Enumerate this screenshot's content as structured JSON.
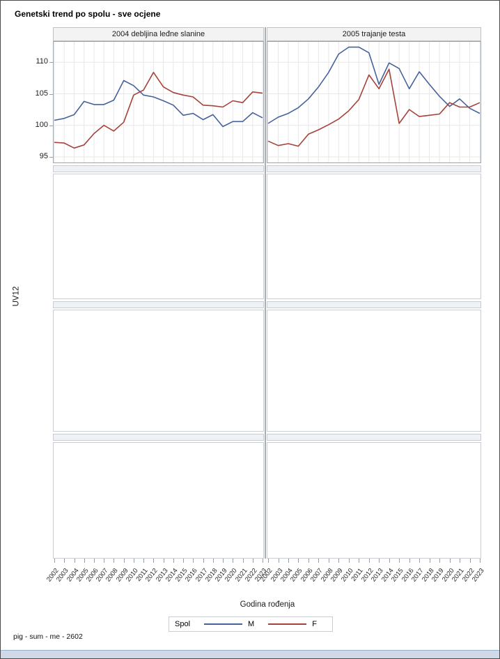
{
  "page": {
    "title": "Genetski trend po spolu - sve ocjene",
    "footer": "pig - sum - me - 2602"
  },
  "chart_data": {
    "type": "line",
    "title": "Genetski trend po spolu - sve ocjene",
    "ylabel": "UV12",
    "xlabel": "Godina rođenja",
    "ylim": [
      94.0,
      113.35
    ],
    "yticks": [
      95,
      100,
      105,
      110
    ],
    "grid": true,
    "x": [
      2002,
      2003,
      2004,
      2005,
      2006,
      2007,
      2008,
      2009,
      2010,
      2011,
      2012,
      2013,
      2014,
      2015,
      2016,
      2017,
      2018,
      2019,
      2020,
      2021,
      2022,
      2023
    ],
    "legend": {
      "title": "Spol",
      "position": "bottom",
      "entries": [
        {
          "name": "M",
          "color": "#46629B"
        },
        {
          "name": "F",
          "color": "#A5433A"
        }
      ]
    },
    "panels": [
      {
        "header": "2004 debljina leđne slanine",
        "series": [
          {
            "name": "M",
            "color": "#46629B",
            "values": [
              100.8,
              101.1,
              101.7,
              103.8,
              103.3,
              103.3,
              104.0,
              107.1,
              106.3,
              104.8,
              104.5,
              103.9,
              103.2,
              101.6,
              101.9,
              100.9,
              101.7,
              99.8,
              100.6,
              100.6,
              102.0,
              101.2
            ]
          },
          {
            "name": "F",
            "color": "#A5433A",
            "values": [
              97.3,
              97.2,
              96.4,
              96.9,
              98.7,
              100.0,
              99.1,
              100.5,
              104.8,
              105.6,
              108.4,
              106.1,
              105.2,
              104.8,
              104.5,
              103.2,
              103.1,
              102.9,
              103.9,
              103.6,
              105.3,
              105.1
            ]
          }
        ]
      },
      {
        "header": "2005 trajanje testa",
        "series": [
          {
            "name": "M",
            "color": "#46629B",
            "values": [
              100.3,
              101.3,
              101.9,
              102.8,
              104.2,
              106.1,
              108.4,
              111.3,
              112.4,
              112.4,
              111.5,
              106.5,
              109.9,
              109.0,
              105.8,
              108.5,
              106.5,
              104.6,
              103.0,
              104.2,
              102.7,
              101.9
            ]
          },
          {
            "name": "F",
            "color": "#A5433A",
            "values": [
              97.5,
              96.8,
              97.1,
              96.7,
              98.6,
              99.3,
              100.1,
              101.0,
              102.3,
              104.1,
              108.0,
              105.8,
              108.9,
              100.3,
              102.5,
              101.4,
              101.6,
              101.8,
              103.6,
              102.9,
              102.9,
              103.6
            ]
          }
        ]
      }
    ],
    "empty_panel_rows": 3
  }
}
